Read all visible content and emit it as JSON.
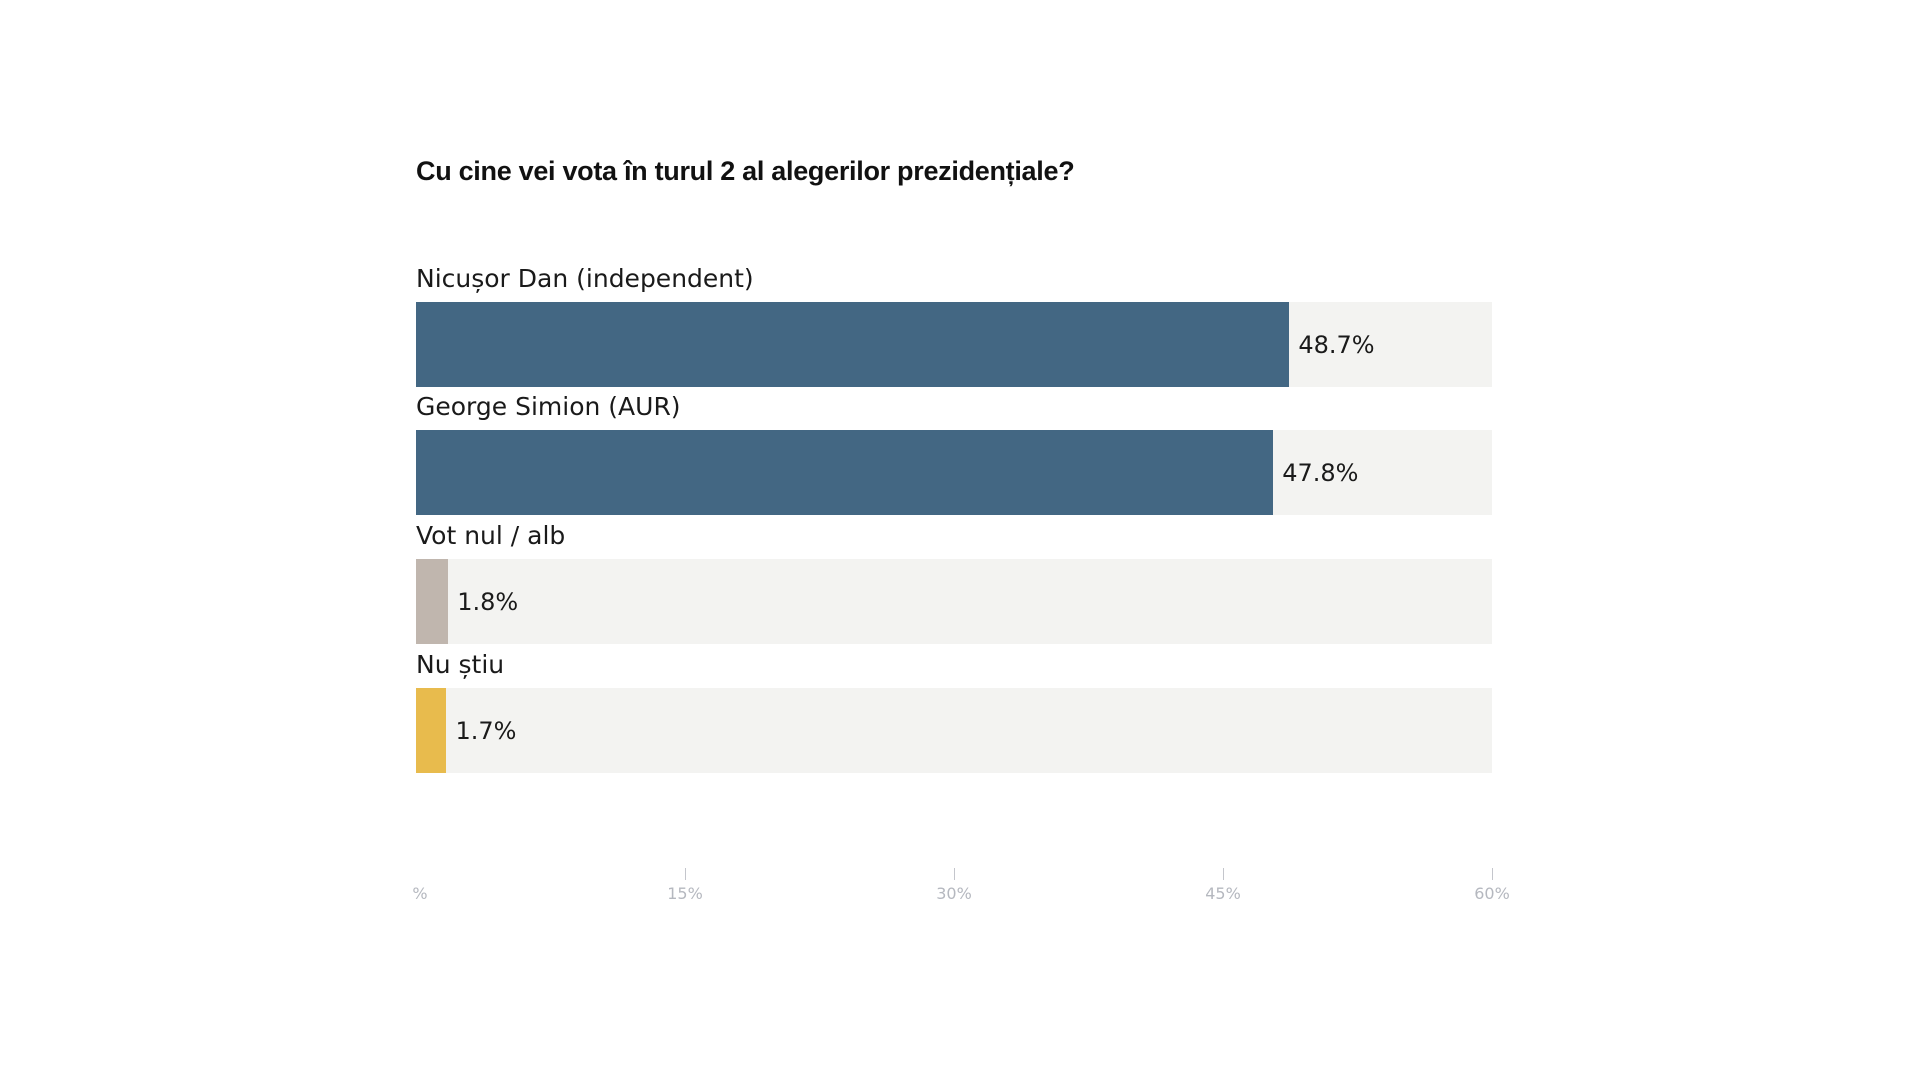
{
  "chart_data": {
    "type": "bar",
    "orientation": "horizontal",
    "title": "Cu cine vei vota în turul 2 al alegerilor prezidențiale?",
    "categories": [
      "Nicușor Dan (independent)",
      "George Simion (AUR)",
      "Vot nul / alb",
      "Nu știu"
    ],
    "values": [
      48.7,
      47.8,
      1.8,
      1.7
    ],
    "value_labels": [
      "48.7%",
      "47.8%",
      "1.8%",
      "1.7%"
    ],
    "colors": [
      "#436783",
      "#436783",
      "#c0b6ae",
      "#e8bb4d"
    ],
    "track_color": "#f3f3f1",
    "xlim": [
      0,
      60
    ],
    "x_ticks": [
      0,
      15,
      30,
      45,
      60
    ],
    "x_tick_labels": [
      "%",
      "15%",
      "30%",
      "45%",
      "60%"
    ],
    "xlabel": "",
    "ylabel": "",
    "grid": false
  }
}
